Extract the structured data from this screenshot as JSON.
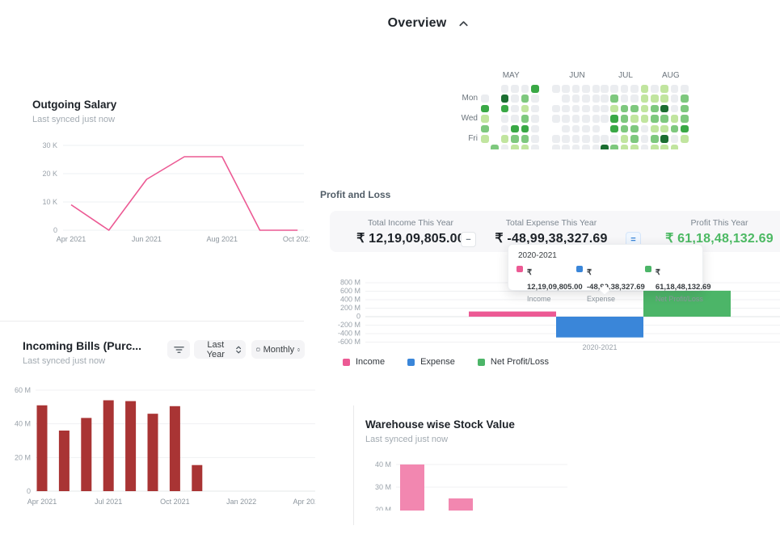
{
  "header": {
    "title": "Overview",
    "collapse_icon": "chevron-up"
  },
  "outgoing_salary": {
    "title": "Outgoing Salary",
    "subtitle": "Last synced just now"
  },
  "incoming_bills": {
    "title": "Incoming Bills (Purc...",
    "subtitle": "Last synced just now",
    "filter_icon": "filter",
    "period_select": {
      "value": "Last Year"
    },
    "frequency_select": {
      "value": "Monthly",
      "icon": "calendar"
    }
  },
  "profit_and_loss": {
    "heading": "Profit and Loss",
    "stats": [
      {
        "label": "Total Income This Year",
        "value": "₹ 12,19,09,805.00",
        "value_color": "#1d2228"
      },
      {
        "label": "Total Expense This Year",
        "value": "₹ -48,99,38,327.69",
        "value_color": "#1d2228"
      },
      {
        "label": "Profit This Year",
        "value": "₹ 61,18,48,132.69",
        "value_color": "#4cb963"
      }
    ],
    "operators": [
      {
        "symbol": "−",
        "color": "#74808a",
        "bg": "#ffffff"
      },
      {
        "symbol": "=",
        "color": "#3a86d9",
        "bg": "#f0f7ff"
      }
    ],
    "tooltip": {
      "title": "2020-2021",
      "entries": [
        {
          "swatch": "#ec5a94",
          "value": "₹ 12,19,09,805.00",
          "label": "Income"
        },
        {
          "swatch": "#3a86d9",
          "value": "₹ -48,99,38,327.69",
          "label": "Expense"
        },
        {
          "swatch": "#4cb568",
          "value": "₹ 61,18,48,132.69",
          "label": "Net Profit/Loss"
        }
      ]
    },
    "legend": [
      {
        "label": "Income",
        "color": "#ec5a94"
      },
      {
        "label": "Expense",
        "color": "#3a86d9"
      },
      {
        "label": "Net Profit/Loss",
        "color": "#4cb568"
      }
    ]
  },
  "warehouse_stock": {
    "title": "Warehouse wise Stock Value",
    "subtitle": "Last synced just now"
  },
  "chart_data": [
    {
      "id": "outgoing-salary",
      "type": "line",
      "title": "Outgoing Salary",
      "x": [
        "Apr 2021",
        "May 2021",
        "Jun 2021",
        "Jul 2021",
        "Aug 2021",
        "Sep 2021",
        "Oct 2021"
      ],
      "values": [
        9000,
        0,
        18000,
        26000,
        26000,
        0,
        0
      ],
      "ylim": [
        0,
        30000
      ],
      "ytick_labels": [
        "30 K",
        "20 K",
        "10 K",
        "0"
      ],
      "x_tick_labels": [
        "Apr 2021",
        "Jun 2021",
        "Aug 2021",
        "Oct 2021"
      ],
      "x_tick_indices": [
        0,
        2,
        4,
        6
      ],
      "line_color": "#ec5a94",
      "grid": true
    },
    {
      "id": "activity-heatmap",
      "type": "heatmap",
      "day_labels": [
        "Mon",
        "Wed",
        "Fri"
      ],
      "day_label_rows": [
        1,
        3,
        5
      ],
      "palette": [
        "#ebedf0",
        "#c1e59f",
        "#7ec87e",
        "#39a845",
        "#1b6e31"
      ],
      "months": [
        {
          "label": "MAY",
          "matrix": [
            [
              -1,
              -1,
              0,
              0,
              0,
              3
            ],
            [
              0,
              -1,
              4,
              0,
              2,
              0
            ],
            [
              3,
              -1,
              3,
              0,
              1,
              0
            ],
            [
              1,
              -1,
              0,
              0,
              2,
              0
            ],
            [
              2,
              -1,
              0,
              3,
              3,
              0
            ],
            [
              1,
              -1,
              1,
              2,
              2,
              0
            ],
            [
              -1,
              2,
              0,
              1,
              1,
              0
            ]
          ]
        },
        {
          "label": "JUN",
          "matrix": [
            [
              0,
              0,
              0,
              0,
              0
            ],
            [
              -1,
              0,
              0,
              0,
              0
            ],
            [
              0,
              0,
              0,
              0,
              0
            ],
            [
              0,
              0,
              0,
              0,
              0
            ],
            [
              -1,
              0,
              0,
              0,
              0
            ],
            [
              0,
              0,
              0,
              0,
              0
            ],
            [
              0,
              0,
              0,
              0,
              0
            ]
          ]
        },
        {
          "label": "JUL",
          "matrix": [
            [
              0,
              0,
              0,
              0,
              1
            ],
            [
              0,
              2,
              0,
              0,
              1
            ],
            [
              0,
              1,
              2,
              2,
              1
            ],
            [
              0,
              3,
              2,
              1,
              1
            ],
            [
              -1,
              3,
              2,
              2,
              0
            ],
            [
              0,
              0,
              1,
              2,
              0
            ],
            [
              4,
              2,
              1,
              1,
              0
            ]
          ]
        },
        {
          "label": "AUG",
          "matrix": [
            [
              0,
              1,
              0,
              0
            ],
            [
              1,
              1,
              0,
              2
            ],
            [
              2,
              4,
              0,
              2
            ],
            [
              2,
              2,
              1,
              2
            ],
            [
              1,
              1,
              2,
              3
            ],
            [
              2,
              4,
              0,
              1
            ],
            [
              1,
              1,
              1,
              -1
            ]
          ]
        }
      ]
    },
    {
      "id": "profit-and-loss",
      "type": "bar",
      "categories": [
        "2020-2021"
      ],
      "series": [
        {
          "name": "Income",
          "value": 121909805,
          "color": "#ec5a94"
        },
        {
          "name": "Expense",
          "value": -489938327.69,
          "color": "#3a86d9"
        },
        {
          "name": "Net Profit/Loss",
          "value": 611848132.69,
          "color": "#4cb568"
        }
      ],
      "ylim": [
        -600000000,
        800000000
      ],
      "ytick_labels": [
        "800 M",
        "600 M",
        "400 M",
        "200 M",
        "0",
        "-200 M",
        "-400 M",
        "-600 M"
      ],
      "grid": true,
      "legend_position": "bottom"
    },
    {
      "id": "incoming-bills",
      "type": "bar",
      "categories": [
        "Apr 2021",
        "May 2021",
        "Jun 2021",
        "Jul 2021",
        "Aug 2021",
        "Sep 2021",
        "Oct 2021",
        "Nov 2021",
        "Dec 2021",
        "Jan 2022",
        "Feb 2022",
        "Mar 2022",
        "Apr 2022"
      ],
      "values_millions": [
        51,
        36,
        43.5,
        54,
        53.5,
        46,
        50.5,
        15.5,
        0,
        0,
        0,
        0,
        0
      ],
      "ylim_millions": [
        0,
        60
      ],
      "ytick_labels": [
        "60 M",
        "40 M",
        "20 M",
        "0"
      ],
      "x_tick_labels": [
        "Apr 2021",
        "Jul 2021",
        "Oct 2021",
        "Jan 2022",
        "Apr 2022"
      ],
      "x_tick_indices": [
        0,
        3,
        6,
        9,
        12
      ],
      "bar_color": "#a93434",
      "grid": true
    },
    {
      "id": "warehouse-stock",
      "type": "bar",
      "title": "Warehouse wise Stock Value",
      "values_millions": [
        40,
        25
      ],
      "ytick_labels": [
        "40 M",
        "30 M",
        "20 M"
      ],
      "bar_color": "#f287b0",
      "grid": true,
      "clipped_at_bottom": true
    }
  ]
}
